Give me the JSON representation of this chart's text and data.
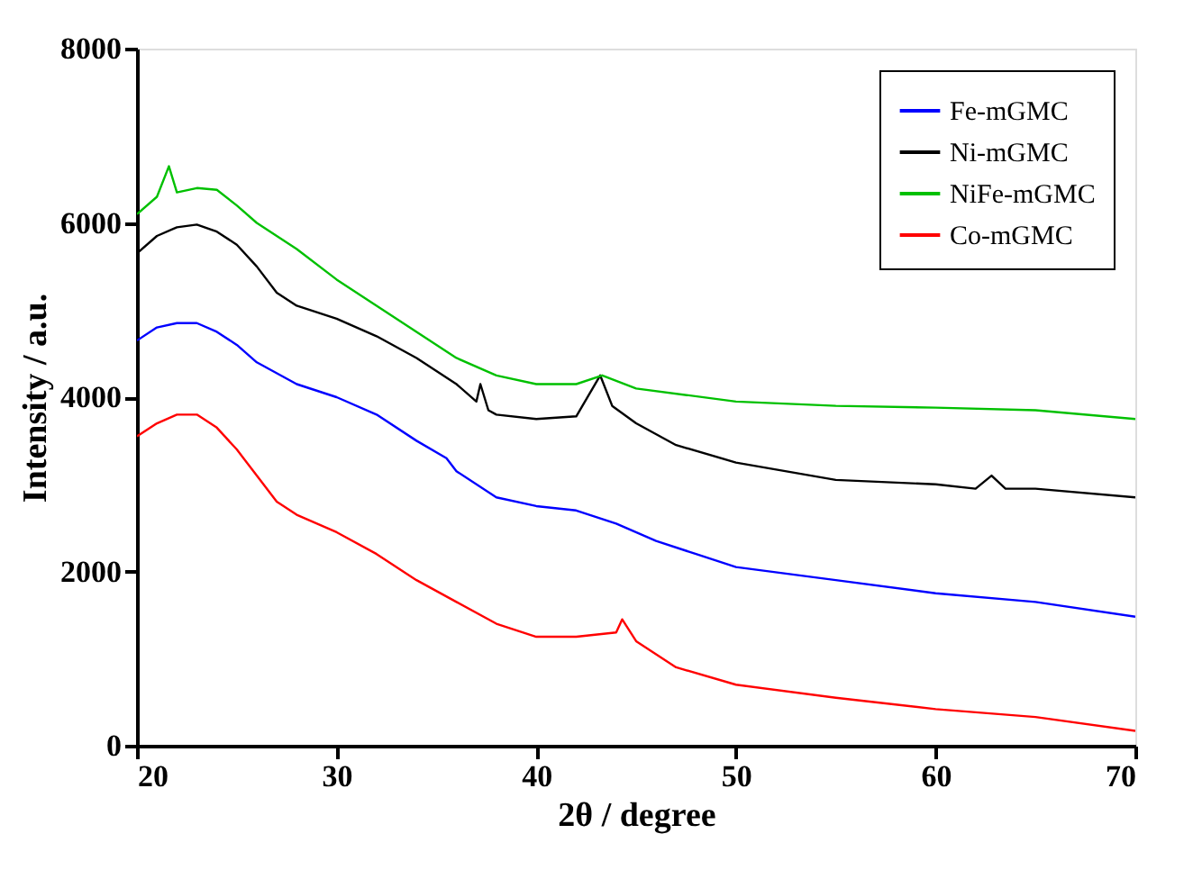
{
  "chart_data": {
    "type": "line",
    "xlabel": "2θ / degree",
    "ylabel": "Intensity / a.u.",
    "xlim": [
      20,
      70
    ],
    "ylim": [
      0,
      8000
    ],
    "xticks": [
      20,
      30,
      40,
      50,
      60,
      70
    ],
    "yticks": [
      0,
      2000,
      4000,
      6000,
      8000
    ],
    "grid": false,
    "legend": "top right",
    "marker": "none",
    "line_style": "solid",
    "series": [
      {
        "name": "Fe-mGMC",
        "color": "#0000ff",
        "x": [
          20,
          21,
          22,
          23,
          24,
          25,
          26,
          28,
          30,
          32,
          34,
          35.5,
          36,
          38,
          40,
          42,
          44,
          46,
          48,
          50,
          55,
          60,
          65,
          70
        ],
        "values": [
          4650,
          4800,
          4850,
          4850,
          4750,
          4600,
          4400,
          4150,
          4000,
          3800,
          3500,
          3300,
          3150,
          2850,
          2750,
          2700,
          2550,
          2350,
          2200,
          2050,
          1900,
          1750,
          1650,
          1480
        ]
      },
      {
        "name": "Ni-mGMC",
        "color": "#000000",
        "x": [
          20,
          21,
          22,
          23,
          24,
          25,
          26,
          27,
          28,
          30,
          32,
          34,
          36,
          37,
          37.2,
          37.6,
          38,
          40,
          42,
          43.2,
          43.8,
          45,
          47,
          50,
          55,
          60,
          62,
          62.8,
          63.5,
          65,
          70
        ],
        "values": [
          5650,
          5850,
          5950,
          5980,
          5900,
          5750,
          5500,
          5200,
          5050,
          4900,
          4700,
          4450,
          4150,
          3950,
          4150,
          3850,
          3800,
          3750,
          3780,
          4250,
          3900,
          3700,
          3450,
          3250,
          3050,
          3000,
          2950,
          3100,
          2950,
          2950,
          2850
        ]
      },
      {
        "name": "NiFe-mGMC",
        "color": "#00c000",
        "x": [
          20,
          21,
          21.6,
          22,
          23,
          24,
          25,
          26,
          28,
          30,
          32,
          34,
          36,
          38,
          40,
          42,
          43.3,
          45,
          50,
          55,
          60,
          65,
          70
        ],
        "values": [
          6100,
          6300,
          6650,
          6350,
          6400,
          6380,
          6200,
          6000,
          5700,
          5350,
          5050,
          4750,
          4450,
          4250,
          4150,
          4150,
          4250,
          4100,
          3950,
          3900,
          3880,
          3850,
          3750
        ]
      },
      {
        "name": "Co-mGMC",
        "color": "#ff0000",
        "x": [
          20,
          21,
          22,
          23,
          24,
          25,
          26,
          27,
          28,
          30,
          32,
          34,
          36,
          38,
          40,
          42,
          44,
          44.3,
          45,
          47,
          50,
          55,
          60,
          65,
          70
        ],
        "values": [
          3550,
          3700,
          3800,
          3800,
          3650,
          3400,
          3100,
          2800,
          2650,
          2450,
          2200,
          1900,
          1650,
          1400,
          1250,
          1250,
          1300,
          1450,
          1200,
          900,
          700,
          550,
          420,
          330,
          170
        ]
      }
    ]
  }
}
